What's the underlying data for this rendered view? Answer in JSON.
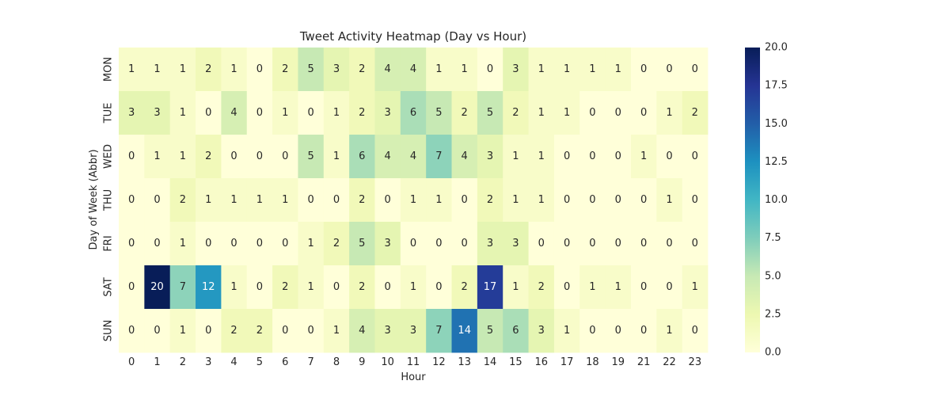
{
  "chart_data": {
    "type": "heatmap",
    "title": "Tweet Activity Heatmap (Day vs Hour)",
    "xlabel": "Hour",
    "ylabel": "Day of Week (Abbr)",
    "x_categories": [
      "0",
      "1",
      "2",
      "3",
      "4",
      "5",
      "6",
      "7",
      "8",
      "9",
      "10",
      "11",
      "12",
      "13",
      "14",
      "15",
      "16",
      "17",
      "18",
      "19",
      "21",
      "22",
      "23"
    ],
    "y_categories": [
      "MON",
      "TUE",
      "WED",
      "THU",
      "FRI",
      "SAT",
      "SUN"
    ],
    "values": [
      [
        1,
        1,
        1,
        2,
        1,
        0,
        2,
        5,
        3,
        2,
        4,
        4,
        1,
        1,
        0,
        3,
        1,
        1,
        1,
        1,
        0,
        0,
        0
      ],
      [
        3,
        3,
        1,
        0,
        4,
        0,
        1,
        0,
        1,
        2,
        3,
        6,
        5,
        2,
        5,
        2,
        1,
        1,
        0,
        0,
        0,
        1,
        2
      ],
      [
        0,
        1,
        1,
        2,
        0,
        0,
        0,
        5,
        1,
        6,
        4,
        4,
        7,
        4,
        3,
        1,
        1,
        0,
        0,
        0,
        1,
        0,
        0
      ],
      [
        0,
        0,
        2,
        1,
        1,
        1,
        1,
        0,
        0,
        2,
        0,
        1,
        1,
        0,
        2,
        1,
        1,
        0,
        0,
        0,
        0,
        1,
        0
      ],
      [
        0,
        0,
        1,
        0,
        0,
        0,
        0,
        1,
        2,
        5,
        3,
        0,
        0,
        0,
        3,
        3,
        0,
        0,
        0,
        0,
        0,
        0,
        0
      ],
      [
        0,
        20,
        7,
        12,
        1,
        0,
        2,
        1,
        0,
        2,
        0,
        1,
        0,
        2,
        17,
        1,
        2,
        0,
        1,
        1,
        0,
        0,
        1
      ],
      [
        0,
        0,
        1,
        0,
        2,
        2,
        0,
        0,
        1,
        4,
        3,
        3,
        7,
        14,
        5,
        6,
        3,
        1,
        0,
        0,
        0,
        1,
        0
      ]
    ],
    "colorscale": "YlGnBu",
    "vmin": 0,
    "vmax": 20,
    "colorbar_ticks": [
      "0.0",
      "2.5",
      "5.0",
      "7.5",
      "10.0",
      "12.5",
      "15.0",
      "17.5",
      "20.0"
    ]
  }
}
